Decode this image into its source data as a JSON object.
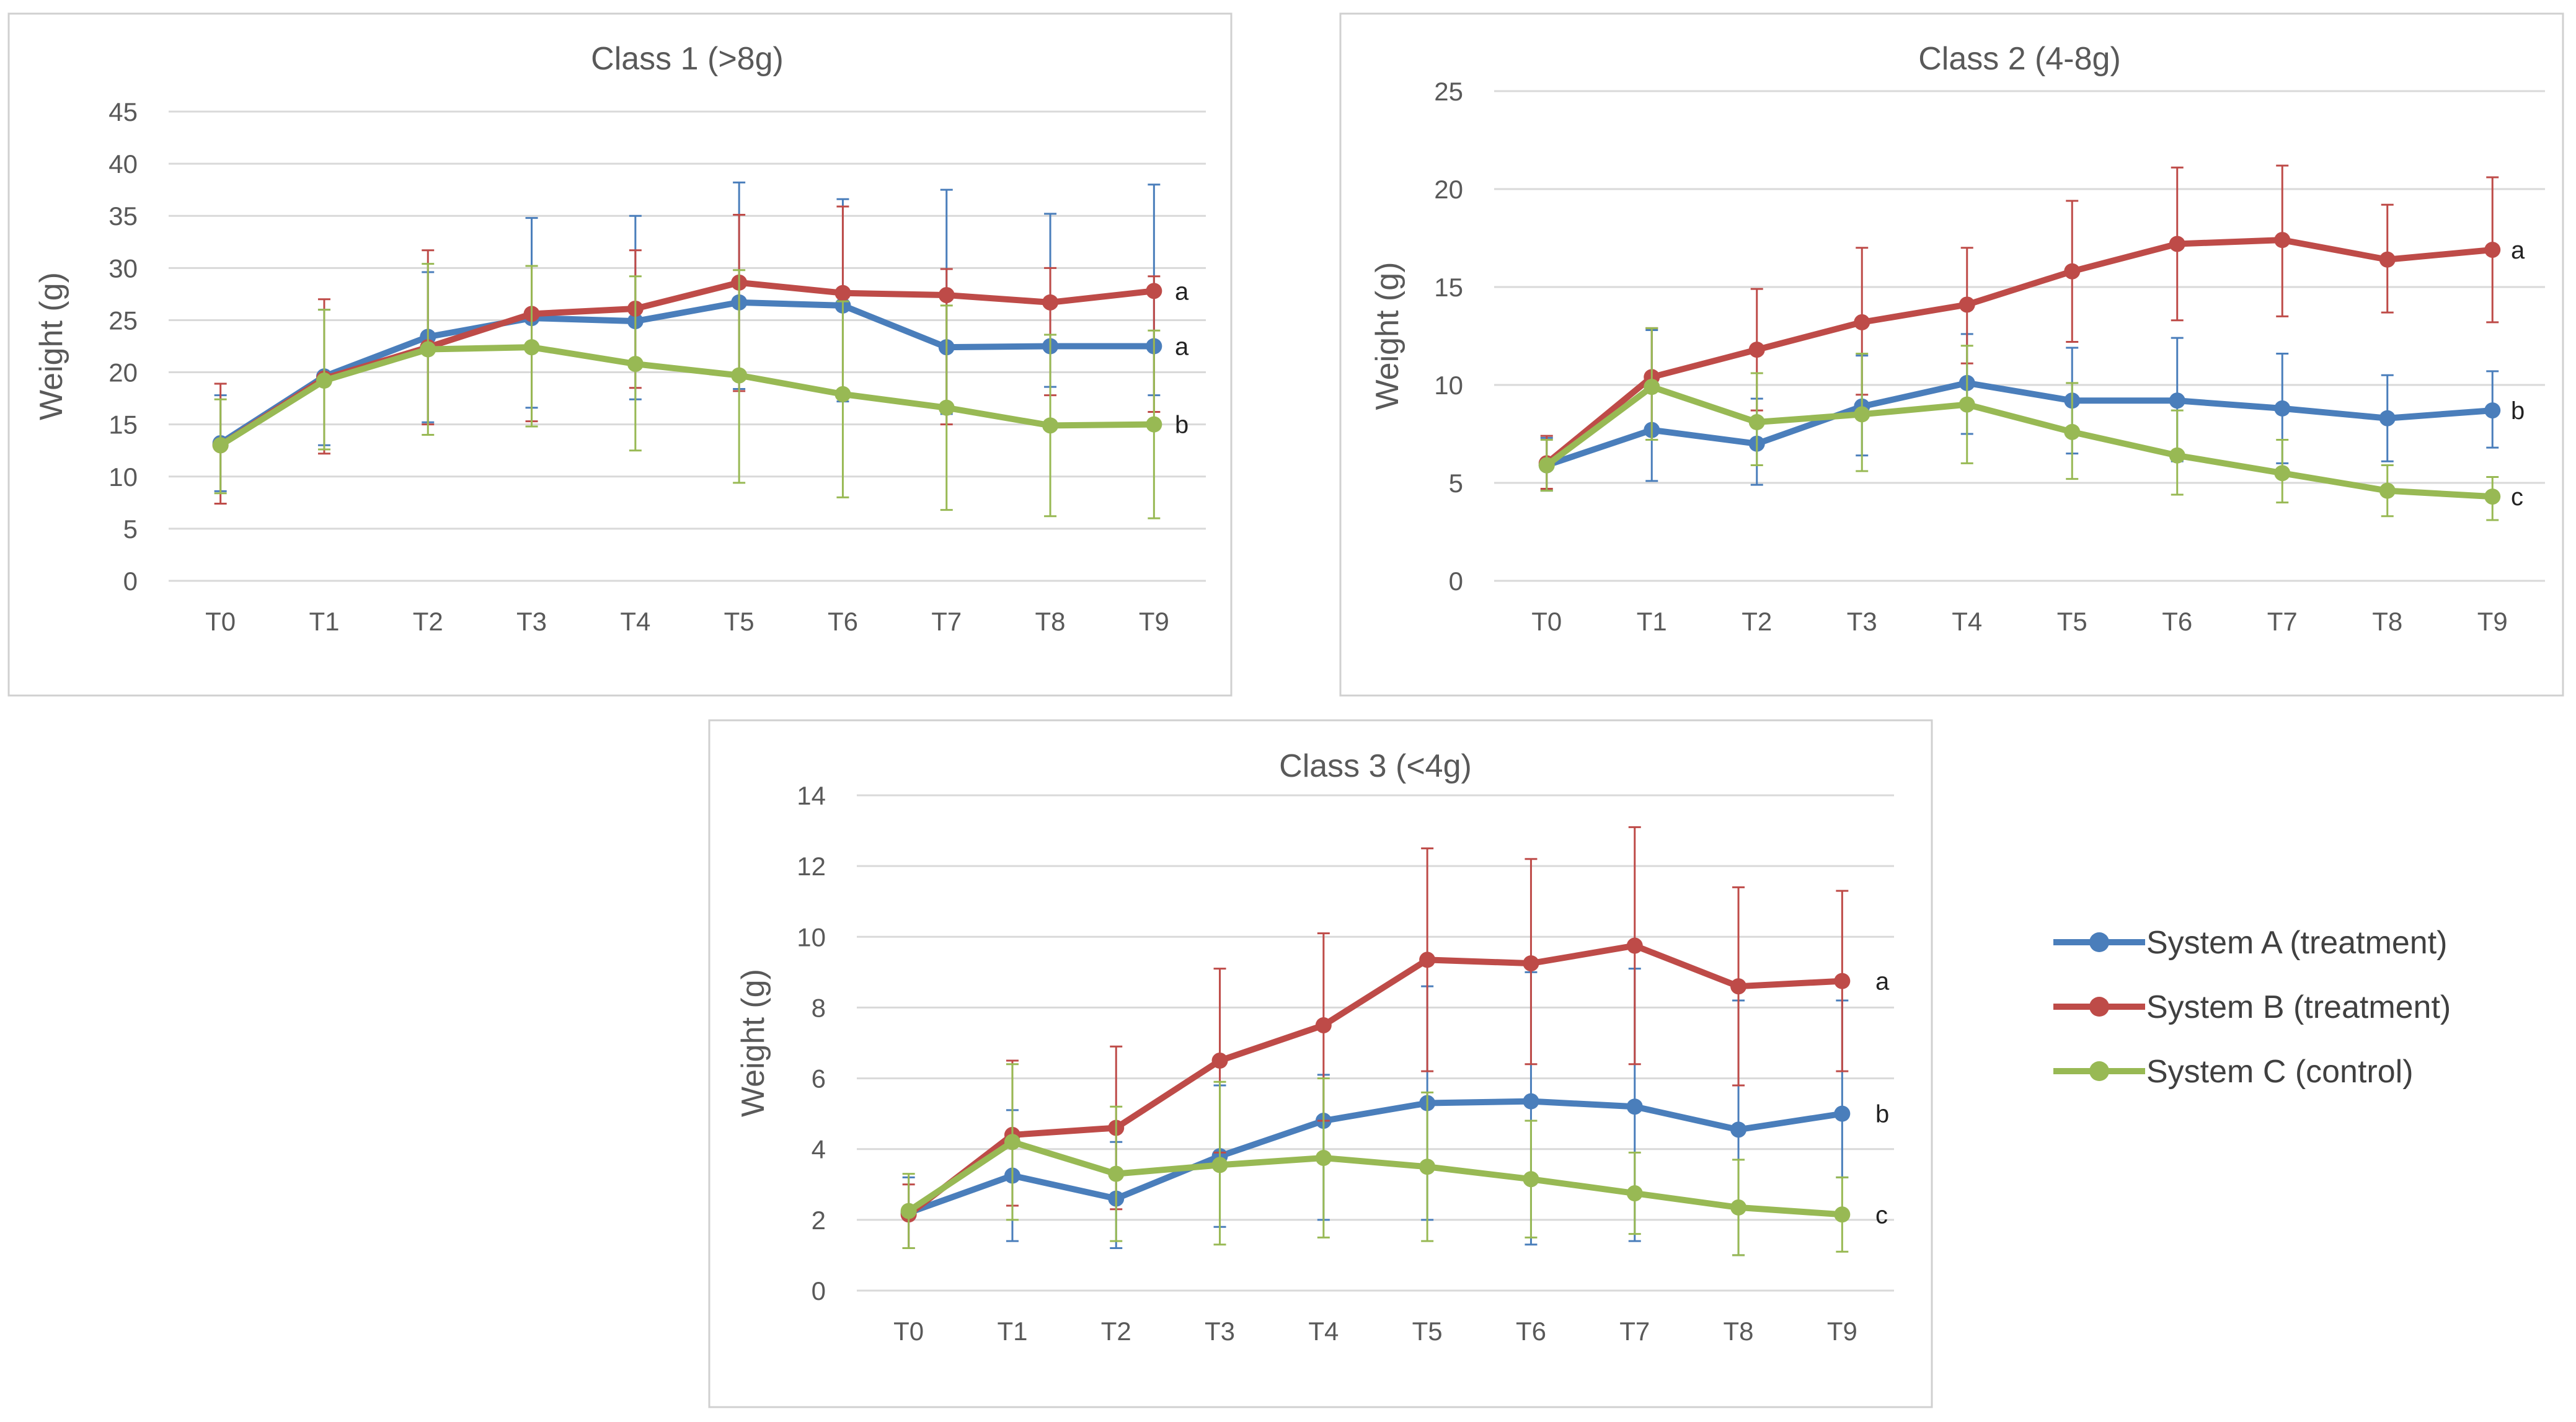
{
  "colors": {
    "system_a": "#4A7EBB",
    "system_b": "#BE4B48",
    "system_c": "#98B954",
    "grid": "#D9D9D9",
    "axis_text": "#595959",
    "frame": "#D0D0D0"
  },
  "legend": {
    "items": [
      {
        "label": "System A (treatment)",
        "color": "#4A7EBB"
      },
      {
        "label": "System B (treatment)",
        "color": "#BE4B48"
      },
      {
        "label": "System C (control)",
        "color": "#98B954"
      }
    ]
  },
  "chart_data": [
    {
      "type": "line",
      "title": "Class 1 (>8g)",
      "xlabel": "",
      "ylabel": "Weight (g)",
      "ylim": [
        0,
        45
      ],
      "ytick_step": 5,
      "grid": true,
      "categories": [
        "T0",
        "T1",
        "T2",
        "T3",
        "T4",
        "T5",
        "T6",
        "T7",
        "T8",
        "T9"
      ],
      "series": [
        {
          "name": "System A (treatment)",
          "color": "#4A7EBB",
          "values": [
            13.2,
            19.6,
            23.4,
            25.2,
            24.9,
            26.7,
            26.4,
            22.4,
            22.5,
            22.5
          ],
          "err_upper": [
            17.8,
            26.0,
            29.6,
            34.8,
            35.0,
            38.2,
            36.6,
            37.5,
            35.2,
            38.0
          ],
          "err_lower": [
            8.6,
            13.0,
            15.2,
            16.6,
            17.4,
            18.4,
            17.2,
            16.0,
            18.6,
            17.8
          ],
          "end_label": "a"
        },
        {
          "name": "System B (treatment)",
          "color": "#BE4B48",
          "values": [
            13.0,
            19.4,
            22.4,
            25.6,
            26.1,
            28.6,
            27.6,
            27.4,
            26.7,
            27.8
          ],
          "err_upper": [
            18.9,
            27.0,
            31.7,
            30.2,
            31.7,
            35.1,
            35.9,
            29.9,
            30.0,
            29.2
          ],
          "err_lower": [
            7.4,
            12.2,
            15.0,
            15.3,
            18.5,
            18.2,
            17.8,
            15.0,
            17.8,
            16.2
          ],
          "end_label": "a"
        },
        {
          "name": "System C (control)",
          "color": "#98B954",
          "values": [
            13.0,
            19.2,
            22.2,
            22.4,
            20.8,
            19.7,
            17.9,
            16.6,
            14.9,
            15.0
          ],
          "err_upper": [
            17.4,
            26.0,
            30.4,
            30.2,
            29.2,
            29.8,
            26.8,
            26.4,
            23.6,
            24.0
          ],
          "err_lower": [
            8.4,
            12.6,
            14.0,
            14.8,
            12.5,
            9.4,
            8.0,
            6.8,
            6.2,
            6.0
          ],
          "end_label": "b"
        }
      ]
    },
    {
      "type": "line",
      "title": "Class 2 (4-8g)",
      "xlabel": "",
      "ylabel": "Weight (g)",
      "ylim": [
        0,
        25
      ],
      "ytick_step": 5,
      "grid": true,
      "categories": [
        "T0",
        "T1",
        "T2",
        "T3",
        "T4",
        "T5",
        "T6",
        "T7",
        "T8",
        "T9"
      ],
      "series": [
        {
          "name": "System A (treatment)",
          "color": "#4A7EBB",
          "values": [
            5.9,
            7.7,
            7.0,
            8.9,
            10.1,
            9.2,
            9.2,
            8.8,
            8.3,
            8.7
          ],
          "err_upper": [
            7.3,
            12.8,
            9.3,
            11.5,
            12.6,
            11.9,
            12.4,
            11.6,
            10.5,
            10.7
          ],
          "err_lower": [
            4.6,
            5.1,
            4.9,
            6.4,
            7.5,
            6.5,
            6.1,
            6.0,
            6.1,
            6.8
          ],
          "end_label": "b"
        },
        {
          "name": "System B (treatment)",
          "color": "#BE4B48",
          "values": [
            6.0,
            10.4,
            11.8,
            13.2,
            14.1,
            15.8,
            17.2,
            17.4,
            16.4,
            16.9
          ],
          "err_upper": [
            7.4,
            12.9,
            14.9,
            17.0,
            17.0,
            19.4,
            21.1,
            21.2,
            19.2,
            20.6
          ],
          "err_lower": [
            4.7,
            7.2,
            8.7,
            9.5,
            11.1,
            12.2,
            13.3,
            13.5,
            13.7,
            13.2
          ],
          "end_label": "a"
        },
        {
          "name": "System C (control)",
          "color": "#98B954",
          "values": [
            5.9,
            9.9,
            8.1,
            8.5,
            9.0,
            7.6,
            6.4,
            5.5,
            4.6,
            4.3
          ],
          "err_upper": [
            7.2,
            12.9,
            10.6,
            11.6,
            12.0,
            10.1,
            8.7,
            7.2,
            5.9,
            5.3
          ],
          "err_lower": [
            4.6,
            7.2,
            5.9,
            5.6,
            6.0,
            5.2,
            4.4,
            4.0,
            3.3,
            3.1
          ],
          "end_label": "c"
        }
      ]
    },
    {
      "type": "line",
      "title": "Class 3 (<4g)",
      "xlabel": "",
      "ylabel": "Weight (g)",
      "ylim": [
        0,
        14
      ],
      "ytick_step": 2,
      "grid": true,
      "categories": [
        "T0",
        "T1",
        "T2",
        "T3",
        "T4",
        "T5",
        "T6",
        "T7",
        "T8",
        "T9"
      ],
      "series": [
        {
          "name": "System A (treatment)",
          "color": "#4A7EBB",
          "values": [
            2.2,
            3.25,
            2.6,
            3.8,
            4.8,
            5.3,
            5.35,
            5.2,
            4.55,
            5.0
          ],
          "err_upper": [
            3.2,
            5.1,
            4.2,
            5.8,
            6.1,
            8.6,
            9.0,
            9.1,
            8.2,
            8.2
          ],
          "err_lower": [
            1.2,
            1.4,
            1.2,
            1.8,
            2.0,
            2.0,
            1.3,
            1.4,
            1.0,
            3.2
          ],
          "end_label": "b"
        },
        {
          "name": "System B (treatment)",
          "color": "#BE4B48",
          "values": [
            2.15,
            4.4,
            4.6,
            6.5,
            7.5,
            9.35,
            9.25,
            9.75,
            8.6,
            8.75
          ],
          "err_upper": [
            3.0,
            6.5,
            6.9,
            9.1,
            10.1,
            12.5,
            12.2,
            13.1,
            11.4,
            11.3
          ],
          "err_lower": [
            1.2,
            2.4,
            2.3,
            3.9,
            4.8,
            6.2,
            6.4,
            6.4,
            5.8,
            6.2
          ],
          "end_label": "a"
        },
        {
          "name": "System C (control)",
          "color": "#98B954",
          "values": [
            2.25,
            4.2,
            3.3,
            3.55,
            3.75,
            3.5,
            3.15,
            2.75,
            2.35,
            2.15
          ],
          "err_upper": [
            3.3,
            6.4,
            5.2,
            5.9,
            6.0,
            5.6,
            4.8,
            3.9,
            3.7,
            3.2
          ],
          "err_lower": [
            1.2,
            2.0,
            1.4,
            1.3,
            1.5,
            1.4,
            1.5,
            1.6,
            1.0,
            1.1
          ],
          "end_label": "c"
        }
      ]
    }
  ]
}
